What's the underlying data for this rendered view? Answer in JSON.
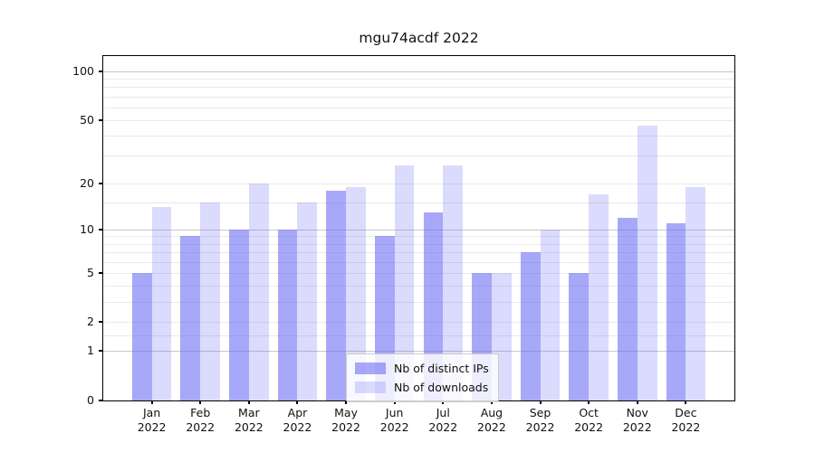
{
  "chart_data": {
    "type": "bar",
    "title": "mgu74acdf 2022",
    "categories": [
      "Jan\n2022",
      "Feb\n2022",
      "Mar\n2022",
      "Apr\n2022",
      "May\n2022",
      "Jun\n2022",
      "Jul\n2022",
      "Aug\n2022",
      "Sep\n2022",
      "Oct\n2022",
      "Nov\n2022",
      "Dec\n2022"
    ],
    "series": [
      {
        "name": "Nb of distinct IPs",
        "color": "rgba(100,100,245,0.56)",
        "values": [
          5,
          9,
          10,
          10,
          18,
          9,
          13,
          5,
          7,
          5,
          12,
          11
        ]
      },
      {
        "name": "Nb of downloads",
        "color": "rgba(100,100,245,0.235)",
        "values": [
          14,
          15,
          20,
          15,
          19,
          26,
          26,
          5,
          10,
          17,
          46,
          19
        ]
      }
    ],
    "xlabel": "",
    "ylabel": "",
    "yscale": "log1p",
    "ylim": [
      0,
      123
    ],
    "y_major_ticks": [
      0,
      1,
      2,
      5,
      10,
      20,
      50,
      100
    ],
    "y_minor_ticks": [
      1.5,
      3,
      4,
      6,
      7,
      8,
      9,
      15,
      30,
      40,
      60,
      70,
      80,
      90
    ],
    "grid": true,
    "legend_position": "lower center"
  },
  "colors": {
    "frame": "#000000",
    "grid_major": "#c8c8c8",
    "grid_minor": "#e9e9e9",
    "text": "#111111",
    "legend_border": "#cccccc",
    "legend_background": "rgba(255,255,255,0.8)"
  }
}
